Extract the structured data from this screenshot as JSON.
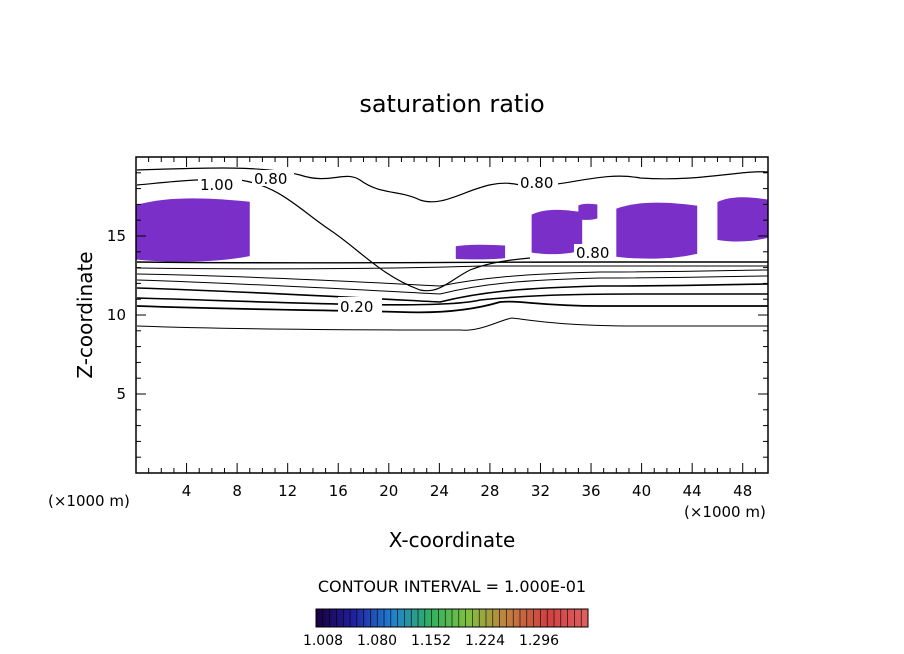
{
  "chart_data": {
    "type": "contour",
    "title": "saturation ratio",
    "xlabel": "X-coordinate",
    "ylabel": "Z-coordinate",
    "x_unit_label": "(×1000 m)",
    "z_unit_label": "(×1000 m)",
    "xlim": [
      0,
      50
    ],
    "ylim": [
      0,
      20
    ],
    "x_ticks": [
      "4",
      "8",
      "12",
      "16",
      "20",
      "24",
      "28",
      "32",
      "36",
      "40",
      "44",
      "48"
    ],
    "y_ticks": [
      "5",
      "10",
      "15"
    ],
    "contour_interval_text": "CONTOUR INTERVAL = 1.000E-01",
    "contour_labels": [
      "1.00",
      "0.80",
      "0.80",
      "0.80",
      "0.20"
    ],
    "colorbar": {
      "labels": [
        "1.008",
        "1.080",
        "1.152",
        "1.224",
        "1.296"
      ],
      "colors": [
        "#1a0040",
        "#2020a0",
        "#2080d0",
        "#30b060",
        "#80c040",
        "#c08040",
        "#d04040",
        "#e06060"
      ]
    },
    "fill_color": "#7a2fc8",
    "fill_regions": [
      {
        "x": [
          0,
          9.0
        ],
        "z": [
          13.3,
          17.6
        ]
      },
      {
        "x": [
          25.3,
          29.2
        ],
        "z": [
          13.5,
          14.5
        ]
      },
      {
        "x": [
          31.3,
          35.3
        ],
        "z": [
          13.8,
          16.8
        ]
      },
      {
        "x": [
          38.0,
          44.4
        ],
        "z": [
          13.5,
          17.3
        ]
      },
      {
        "x": [
          46.0,
          50.0
        ],
        "z": [
          14.6,
          17.6
        ]
      },
      {
        "x": [
          35.0,
          36.5
        ],
        "z": [
          16.0,
          17.1
        ]
      }
    ],
    "contour_levels_shown": [
      0.2,
      0.8,
      1.0
    ]
  }
}
